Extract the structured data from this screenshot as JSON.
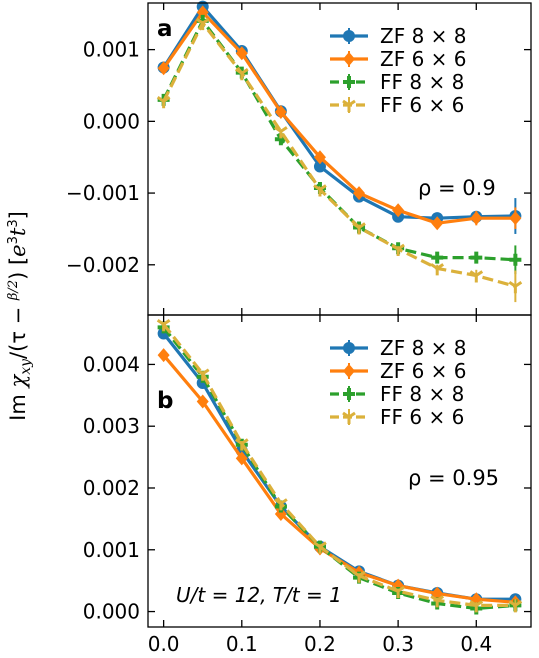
{
  "figure": {
    "ylabel_parts": [
      "Im ",
      "χ",
      "xy",
      "/(τ − ",
      "β/2",
      ")  [",
      "e",
      "3",
      "t",
      "3",
      "]"
    ]
  },
  "chart_data": [
    {
      "type": "line",
      "panel_label": "a",
      "annotation": "ρ = 0.9",
      "xlim": [
        -0.02,
        0.47
      ],
      "ylim": [
        -0.0027,
        0.00165
      ],
      "yticks": [
        -0.002,
        -0.001,
        0.0,
        0.001
      ],
      "ytick_labels": [
        "−0.002",
        "−0.001",
        "0.000",
        "0.001"
      ],
      "xticks": [
        0.0,
        0.1,
        0.2,
        0.3,
        0.4
      ],
      "xtick_labels": [
        "0.0",
        "0.1",
        "0.2",
        "0.3",
        "0.4"
      ],
      "legend": "top-right",
      "series": [
        {
          "name": "ZF 8 × 8",
          "color": "#1f77b4",
          "style": "solid",
          "marker": "circle",
          "x": [
            0.0,
            0.05,
            0.1,
            0.15,
            0.2,
            0.25,
            0.3,
            0.35,
            0.4,
            0.45
          ],
          "y": [
            0.00075,
            0.0016,
            0.00098,
            0.00014,
            -0.00063,
            -0.00105,
            -0.00133,
            -0.00135,
            -0.00133,
            -0.00132
          ],
          "err": [
            3e-05,
            3e-05,
            3e-05,
            3e-05,
            3e-05,
            4e-05,
            5e-05,
            5e-05,
            7e-05,
            0.00025
          ]
        },
        {
          "name": "ZF 6 × 6",
          "color": "#ff7f0e",
          "style": "solid",
          "marker": "diamond",
          "x": [
            0.0,
            0.05,
            0.1,
            0.15,
            0.2,
            0.25,
            0.3,
            0.35,
            0.4,
            0.45
          ],
          "y": [
            0.00074,
            0.00152,
            0.00095,
            0.00013,
            -0.0005,
            -0.001,
            -0.00124,
            -0.00142,
            -0.00135,
            -0.00135
          ],
          "err": [
            3e-05,
            3e-05,
            3e-05,
            3e-05,
            3e-05,
            4e-05,
            4e-05,
            5e-05,
            0.0001,
            0.00015
          ]
        },
        {
          "name": "FF 8 × 8",
          "color": "#2ca02c",
          "style": "dashed",
          "marker": "plus",
          "x": [
            0.0,
            0.05,
            0.1,
            0.15,
            0.2,
            0.25,
            0.3,
            0.35,
            0.4,
            0.45
          ],
          "y": [
            0.0003,
            0.0014,
            0.00068,
            -0.00025,
            -0.00093,
            -0.00148,
            -0.00177,
            -0.0019,
            -0.0019,
            -0.00193
          ],
          "err": [
            3e-05,
            3e-05,
            3e-05,
            3e-05,
            3e-05,
            4e-05,
            4e-05,
            5e-05,
            6e-05,
            0.0002
          ]
        },
        {
          "name": "FF 6 × 6",
          "color": "#dbb13b",
          "style": "dashed",
          "marker": "tri_down",
          "x": [
            0.0,
            0.05,
            0.1,
            0.15,
            0.2,
            0.25,
            0.3,
            0.35,
            0.4,
            0.45
          ],
          "y": [
            0.00028,
            0.00137,
            0.00067,
            -0.00014,
            -0.00095,
            -0.00148,
            -0.00178,
            -0.00205,
            -0.00215,
            -0.0023
          ],
          "err": [
            3e-05,
            3e-05,
            3e-05,
            3e-05,
            3e-05,
            4e-05,
            4e-05,
            5e-05,
            8e-05,
            0.00022
          ]
        }
      ]
    },
    {
      "type": "line",
      "panel_label": "b",
      "annotation": "ρ = 0.95",
      "params_text": "U/t = 12, T/t = 1",
      "xlim": [
        -0.02,
        0.47
      ],
      "ylim": [
        -0.00025,
        0.0048
      ],
      "yticks": [
        0.0,
        0.001,
        0.002,
        0.003,
        0.004
      ],
      "ytick_labels": [
        "0.000",
        "0.001",
        "0.002",
        "0.003",
        "0.004"
      ],
      "xticks": [
        0.0,
        0.1,
        0.2,
        0.3,
        0.4
      ],
      "xtick_labels": [
        "0.0",
        "0.1",
        "0.2",
        "0.3",
        "0.4"
      ],
      "legend": "top-right",
      "series": [
        {
          "name": "ZF 8 × 8",
          "color": "#1f77b4",
          "style": "solid",
          "marker": "circle",
          "x": [
            0.0,
            0.05,
            0.1,
            0.15,
            0.2,
            0.25,
            0.3,
            0.35,
            0.4,
            0.45
          ],
          "y": [
            0.0045,
            0.0037,
            0.0026,
            0.0017,
            0.00105,
            0.00065,
            0.00042,
            0.0003,
            0.0002,
            0.0002
          ],
          "err": [
            5e-05,
            5e-05,
            5e-05,
            5e-05,
            4e-05,
            4e-05,
            4e-05,
            4e-05,
            5e-05,
            8e-05
          ]
        },
        {
          "name": "ZF 6 × 6",
          "color": "#ff7f0e",
          "style": "solid",
          "marker": "diamond",
          "x": [
            0.0,
            0.05,
            0.1,
            0.15,
            0.2,
            0.25,
            0.3,
            0.35,
            0.4,
            0.45
          ],
          "y": [
            0.00415,
            0.0034,
            0.00248,
            0.00158,
            0.00102,
            0.00063,
            0.00042,
            0.00029,
            0.0002,
            0.00015
          ],
          "err": [
            4e-05,
            4e-05,
            4e-05,
            4e-05,
            4e-05,
            4e-05,
            4e-05,
            4e-05,
            5e-05,
            7e-05
          ]
        },
        {
          "name": "FF 8 × 8",
          "color": "#2ca02c",
          "style": "dashed",
          "marker": "plus",
          "x": [
            0.0,
            0.05,
            0.1,
            0.15,
            0.2,
            0.25,
            0.3,
            0.35,
            0.4,
            0.45
          ],
          "y": [
            0.0046,
            0.0038,
            0.0027,
            0.0017,
            0.00105,
            0.00055,
            0.0003,
            0.00013,
            5e-05,
            0.0001
          ],
          "err": [
            4e-05,
            4e-05,
            4e-05,
            4e-05,
            4e-05,
            4e-05,
            4e-05,
            4e-05,
            5e-05,
            9e-05
          ]
        },
        {
          "name": "FF 6 × 6",
          "color": "#dbb13b",
          "style": "dashed",
          "marker": "tri_down",
          "x": [
            0.0,
            0.05,
            0.1,
            0.15,
            0.2,
            0.25,
            0.3,
            0.35,
            0.4,
            0.45
          ],
          "y": [
            0.00465,
            0.00385,
            0.00272,
            0.00175,
            0.00105,
            0.00058,
            0.00033,
            0.00018,
            0.0001,
            0.0001
          ],
          "err": [
            4e-05,
            4e-05,
            4e-05,
            4e-05,
            4e-05,
            4e-05,
            4e-05,
            4e-05,
            5e-05,
            0.0001
          ]
        }
      ]
    }
  ]
}
